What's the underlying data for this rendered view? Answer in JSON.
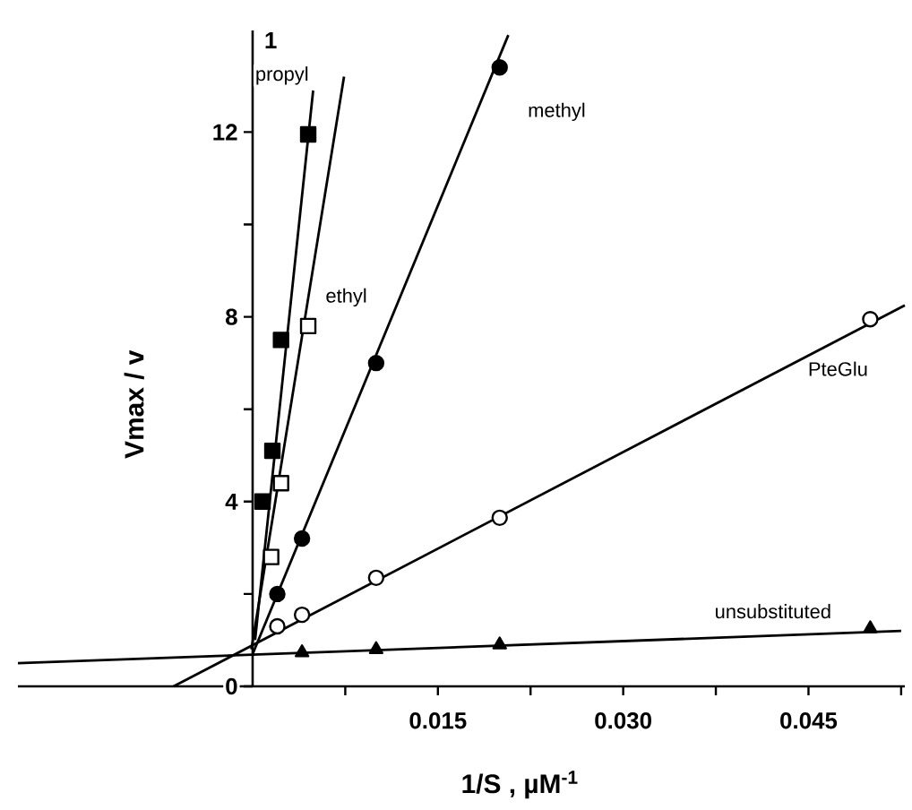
{
  "chart_data": {
    "type": "scatter",
    "xlabel": "1/S ,  µM$^{-1}$",
    "ylabel": "Vmax  /  v",
    "annotations": [
      "1"
    ],
    "xlim": [
      -0.019,
      0.0528
    ],
    "ylim": [
      0,
      14.2
    ],
    "xticks": [
      {
        "value": 0.0075,
        "label": null
      },
      {
        "value": 0.015,
        "label": "0.015"
      },
      {
        "value": 0.0225,
        "label": null
      },
      {
        "value": 0.03,
        "label": "0.030"
      },
      {
        "value": 0.0375,
        "label": null
      },
      {
        "value": 0.045,
        "label": "0.045"
      },
      {
        "value": 0.0525,
        "label": null
      }
    ],
    "yticks": [
      0,
      {
        "value": 2,
        "label": null
      },
      4,
      {
        "value": 6,
        "label": null
      },
      8,
      {
        "value": 10,
        "label": null
      },
      12
    ],
    "grid": false,
    "series": [
      {
        "name": "propyl",
        "color": "#000000",
        "marker": "square",
        "x": [
          0.0008,
          0.0016,
          0.0023,
          0.0045
        ],
        "values": [
          4.0,
          5.1,
          7.5,
          11.95
        ]
      },
      {
        "name": "ethyl",
        "color": "#000000",
        "marker": "square",
        "x": [
          0.0015,
          0.0023,
          0.0045
        ],
        "values": [
          2.8,
          4.4,
          7.8
        ]
      },
      {
        "name": "methyl",
        "color": "#000000",
        "marker": "circle",
        "x": [
          0.002,
          0.004,
          0.01,
          0.02
        ],
        "values": [
          2.0,
          3.2,
          7.0,
          13.4
        ]
      },
      {
        "name": "PteGlu",
        "color": "#000000",
        "marker": "circle",
        "x": [
          0.002,
          0.004,
          0.01,
          0.02,
          0.05
        ],
        "values": [
          1.3,
          1.55,
          2.35,
          3.65,
          7.95
        ]
      },
      {
        "name": "unsubstituted",
        "color": "#000000",
        "marker": "triangle",
        "x": [
          0.004,
          0.01,
          0.02,
          0.05
        ],
        "values": [
          0.73,
          0.8,
          0.9,
          1.25
        ]
      },
      {
        "type": "line",
        "color": "#000000",
        "marker": "none",
        "x": [
          0.0002,
          0.0049
        ],
        "values": [
          1.0,
          12.9
        ]
      },
      {
        "type": "line",
        "color": "#000000",
        "marker": "none",
        "x": [
          -0.0001,
          0.0074
        ],
        "values": [
          0.8,
          13.2
        ]
      },
      {
        "type": "line",
        "color": "#000000",
        "marker": "none",
        "x": [
          0.0,
          0.0207
        ],
        "values": [
          0.7,
          14.1
        ]
      },
      {
        "type": "line",
        "color": "#000000",
        "marker": "none",
        "x": [
          -0.0064,
          0.0528
        ],
        "values": [
          0.0,
          8.25
        ]
      },
      {
        "type": "line",
        "color": "#000000",
        "marker": "none",
        "x": [
          -0.019,
          0.0525
        ],
        "values": [
          0.5,
          1.2
        ]
      }
    ]
  }
}
